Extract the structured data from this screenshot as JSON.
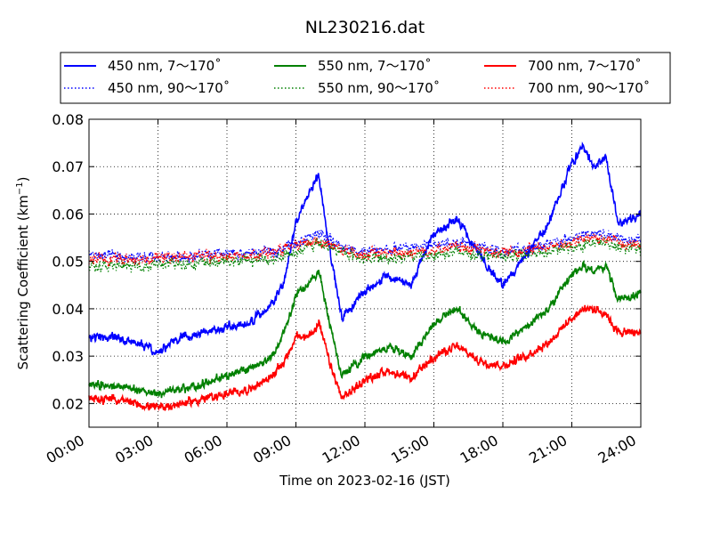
{
  "chart_data": {
    "type": "line",
    "title": "NL230216.dat",
    "xlabel": "Time on 2023-02-16 (JST)",
    "ylabel": "Scattering Coefficient (km",
    "ylabel_sup": "−1",
    "ylabel_close": ")",
    "xlim": [
      0,
      24
    ],
    "ylim": [
      0.015,
      0.08
    ],
    "x_ticks": [
      0,
      3,
      6,
      9,
      12,
      15,
      18,
      21,
      24
    ],
    "x_tick_labels": [
      "00:00",
      "03:00",
      "06:00",
      "09:00",
      "12:00",
      "15:00",
      "18:00",
      "21:00",
      "24:00"
    ],
    "y_ticks": [
      0.02,
      0.03,
      0.04,
      0.05,
      0.06,
      0.07,
      0.08
    ],
    "y_tick_labels": [
      "0.02",
      "0.03",
      "0.04",
      "0.05",
      "0.06",
      "0.07",
      "0.08"
    ],
    "grid": true,
    "legend_position": "top",
    "series": [
      {
        "name": "450 nm, 7～170˚",
        "color": "#0000ff",
        "style": "solid",
        "x": [
          0,
          1,
          2,
          3,
          4,
          5,
          6,
          7,
          8,
          8.5,
          9,
          9.5,
          10,
          10.5,
          11,
          12,
          13,
          14,
          15,
          16,
          17,
          18,
          19,
          20,
          21,
          21.5,
          22,
          22.5,
          23,
          24
        ],
        "y": [
          0.034,
          0.034,
          0.033,
          0.031,
          0.034,
          0.035,
          0.036,
          0.037,
          0.041,
          0.046,
          0.058,
          0.064,
          0.068,
          0.052,
          0.038,
          0.044,
          0.047,
          0.045,
          0.056,
          0.059,
          0.051,
          0.045,
          0.051,
          0.058,
          0.071,
          0.074,
          0.07,
          0.072,
          0.058,
          0.06
        ]
      },
      {
        "name": "450 nm, 90～170˚",
        "color": "#0000ff",
        "style": "dotted",
        "x": [
          0,
          2,
          4,
          6,
          8,
          9,
          10,
          11,
          12,
          14,
          16,
          18,
          20,
          22,
          24
        ],
        "y": [
          0.0515,
          0.0505,
          0.051,
          0.0515,
          0.052,
          0.054,
          0.056,
          0.053,
          0.052,
          0.053,
          0.054,
          0.052,
          0.0535,
          0.056,
          0.0545
        ]
      },
      {
        "name": "550 nm, 7～170˚",
        "color": "#008000",
        "style": "solid",
        "x": [
          0,
          1,
          2,
          3,
          4,
          5,
          6,
          7,
          8,
          8.5,
          9,
          9.5,
          10,
          10.5,
          11,
          12,
          13,
          14,
          15,
          16,
          17,
          18,
          19,
          20,
          21,
          21.5,
          22,
          22.5,
          23,
          24
        ],
        "y": [
          0.024,
          0.024,
          0.023,
          0.022,
          0.023,
          0.024,
          0.026,
          0.027,
          0.03,
          0.035,
          0.043,
          0.045,
          0.048,
          0.036,
          0.026,
          0.03,
          0.032,
          0.03,
          0.037,
          0.04,
          0.035,
          0.033,
          0.036,
          0.04,
          0.047,
          0.049,
          0.048,
          0.049,
          0.042,
          0.043
        ]
      },
      {
        "name": "550 nm, 90～170˚",
        "color": "#008000",
        "style": "dotted",
        "x": [
          0,
          2,
          4,
          6,
          8,
          9,
          10,
          11,
          12,
          14,
          16,
          18,
          20,
          22,
          24
        ],
        "y": [
          0.049,
          0.049,
          0.0495,
          0.05,
          0.0505,
          0.052,
          0.054,
          0.052,
          0.0505,
          0.051,
          0.052,
          0.051,
          0.052,
          0.054,
          0.0525
        ]
      },
      {
        "name": "700 nm, 7～170˚",
        "color": "#ff0000",
        "style": "solid",
        "x": [
          0,
          1,
          2,
          3,
          4,
          5,
          6,
          7,
          8,
          8.5,
          9,
          9.5,
          10,
          10.5,
          11,
          12,
          13,
          14,
          15,
          16,
          17,
          18,
          19,
          20,
          21,
          21.5,
          22,
          22.5,
          23,
          24
        ],
        "y": [
          0.021,
          0.021,
          0.02,
          0.019,
          0.02,
          0.021,
          0.022,
          0.023,
          0.026,
          0.029,
          0.034,
          0.034,
          0.037,
          0.028,
          0.021,
          0.025,
          0.027,
          0.025,
          0.03,
          0.032,
          0.029,
          0.028,
          0.03,
          0.033,
          0.038,
          0.04,
          0.04,
          0.039,
          0.035,
          0.035
        ]
      },
      {
        "name": "700 nm, 90～170˚",
        "color": "#ff0000",
        "style": "dotted",
        "x": [
          0,
          2,
          4,
          6,
          8,
          9,
          10,
          11,
          12,
          14,
          16,
          18,
          20,
          22,
          24
        ],
        "y": [
          0.0505,
          0.0505,
          0.051,
          0.051,
          0.052,
          0.053,
          0.0545,
          0.0525,
          0.0515,
          0.052,
          0.053,
          0.052,
          0.053,
          0.055,
          0.0535
        ]
      }
    ]
  }
}
